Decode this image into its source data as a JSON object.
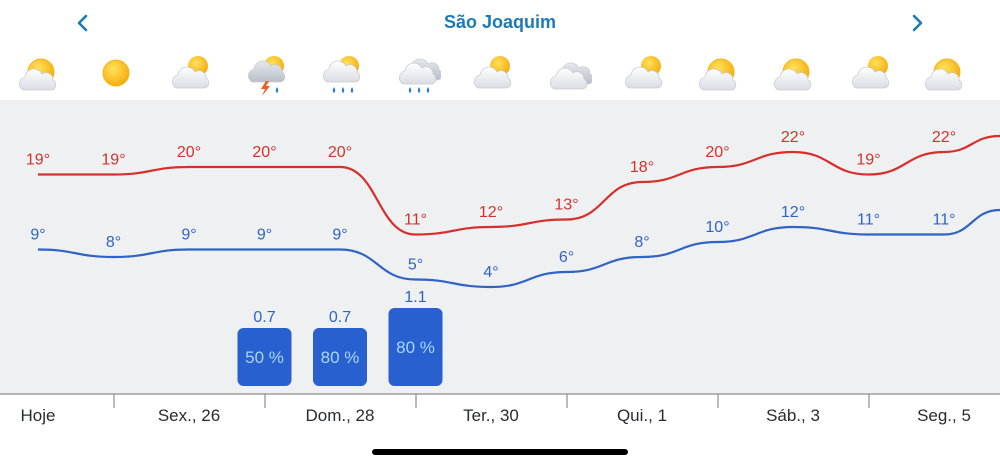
{
  "header": {
    "title": "São Joaquim",
    "prev_label": "previous location",
    "next_label": "next location"
  },
  "colors": {
    "max_line": "#d6302b",
    "min_line": "#2f63c6",
    "bar_fill": "#2960d0",
    "bar_text": "#a9d6ff",
    "amount_text": "#2f63c6",
    "header_text": "#1a7bb8"
  },
  "icons": [
    "partly-sunny-icon",
    "sunny-icon",
    "partly-cloudy-icon",
    "thunderstorm-icon",
    "rain-sun-icon",
    "rain-icon",
    "partly-cloudy-icon",
    "cloudy-icon",
    "partly-cloudy-icon",
    "partly-sunny-icon",
    "partly-sunny-icon",
    "partly-cloudy-icon",
    "partly-sunny-icon"
  ],
  "chart_data": {
    "type": "line",
    "title": "São Joaquim",
    "x": [
      "Hoje",
      "",
      "Sex., 26",
      "",
      "Dom., 28",
      "",
      "Ter., 30",
      "",
      "Qui., 1",
      "",
      "Sáb., 3",
      "",
      "Seg., 5"
    ],
    "series": [
      {
        "name": "max",
        "values": [
          19,
          19,
          20,
          20,
          20,
          11,
          12,
          13,
          18,
          20,
          22,
          19,
          22
        ],
        "labels": [
          "19°",
          "19°",
          "20°",
          "20°",
          "20°",
          "11°",
          "12°",
          "13°",
          "18°",
          "20°",
          "22°",
          "19°",
          "22°"
        ]
      },
      {
        "name": "min",
        "values": [
          9,
          8,
          9,
          9,
          9,
          5,
          4,
          6,
          8,
          10,
          12,
          11,
          11
        ],
        "labels": [
          "9°",
          "8°",
          "9°",
          "9°",
          "9°",
          "5°",
          "4°",
          "6°",
          "8°",
          "10°",
          "12°",
          "11°",
          "11°"
        ]
      }
    ],
    "precipitation": [
      {
        "day_index": 3,
        "amount": 0.7,
        "amount_label": "0.7",
        "probability_label": "50 %"
      },
      {
        "day_index": 4,
        "amount": 0.7,
        "amount_label": "0.7",
        "probability_label": "80 %"
      },
      {
        "day_index": 5,
        "amount": 1.1,
        "amount_label": "1.1",
        "probability_label": "80 %"
      }
    ],
    "axis_labels": [
      "Hoje",
      "Sex., 26",
      "Dom., 28",
      "Ter., 30",
      "Qui., 1",
      "Sáb., 3",
      "Seg., 5"
    ]
  }
}
